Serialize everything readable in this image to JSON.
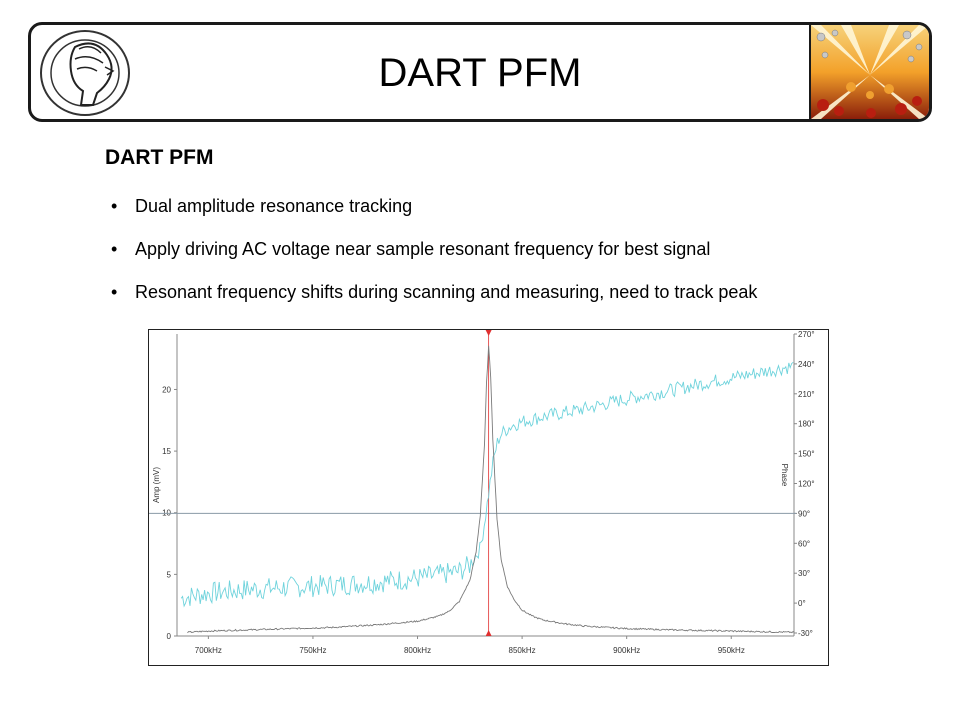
{
  "slide": {
    "header_title": "DART PFM",
    "section_title": "DART PFM",
    "bullets": [
      "Dual amplitude resonance tracking",
      "Apply driving AC voltage near sample resonant frequency for best signal",
      "Resonant frequency shifts during scanning and measuring, need to track peak"
    ],
    "bullet_glyph": "•"
  },
  "colors": {
    "amplitude_trace": "#7a7a7a",
    "phase_trace": "#6fd3dc",
    "marker": "#e03030",
    "baseline": "#8a9aa6",
    "axis": "#888888"
  },
  "chart_data": {
    "type": "line",
    "xlabel": "",
    "ylabel": "Amp (mV)",
    "y2label": "Phase",
    "x_ticks": [
      700,
      750,
      800,
      850,
      900,
      950
    ],
    "x_tick_labels": [
      "700kHz",
      "750kHz",
      "800kHz",
      "850kHz",
      "900kHz",
      "950kHz"
    ],
    "xlim": [
      685,
      980
    ],
    "y_ticks": [
      0,
      5,
      10,
      15,
      20
    ],
    "y_tick_labels": [
      "0",
      "5",
      "10",
      "15",
      "20"
    ],
    "ylim": [
      0,
      24.5
    ],
    "y2_ticks": [
      -30,
      0,
      30,
      60,
      90,
      120,
      150,
      180,
      210,
      240,
      270
    ],
    "y2_tick_labels": [
      "-30°",
      "0°",
      "30°",
      "60°",
      "90°",
      "120°",
      "150°",
      "180°",
      "210°",
      "240°",
      "270°"
    ],
    "y2lim": [
      -33,
      270
    ],
    "horizontal_line_phase": 90,
    "marker_x": 834,
    "grid": false,
    "series": [
      {
        "axis": "left",
        "x": [
          690,
          700,
          720,
          740,
          760,
          780,
          800,
          810,
          815,
          820,
          825,
          828,
          830,
          832,
          833,
          834,
          835,
          836,
          838,
          840,
          843,
          846,
          850,
          855,
          860,
          870,
          880,
          900,
          920,
          950,
          980
        ],
        "values": [
          0.3,
          0.4,
          0.5,
          0.6,
          0.7,
          0.9,
          1.2,
          1.6,
          2.0,
          2.8,
          4.5,
          6.8,
          9.8,
          15.5,
          20.5,
          23.5,
          21.0,
          16.0,
          9.5,
          6.2,
          4.0,
          3.0,
          2.1,
          1.6,
          1.3,
          1.0,
          0.8,
          0.6,
          0.5,
          0.4,
          0.3
        ]
      },
      {
        "axis": "right",
        "x": [
          687,
          700,
          720,
          740,
          760,
          780,
          800,
          810,
          820,
          825,
          830,
          832,
          834,
          836,
          838,
          840,
          845,
          850,
          860,
          880,
          900,
          920,
          940,
          960,
          980
        ],
        "values": [
          5,
          10,
          14,
          16,
          18,
          21,
          25,
          28,
          32,
          38,
          55,
          80,
          110,
          140,
          160,
          170,
          178,
          182,
          187,
          195,
          205,
          213,
          222,
          230,
          238
        ]
      }
    ]
  }
}
